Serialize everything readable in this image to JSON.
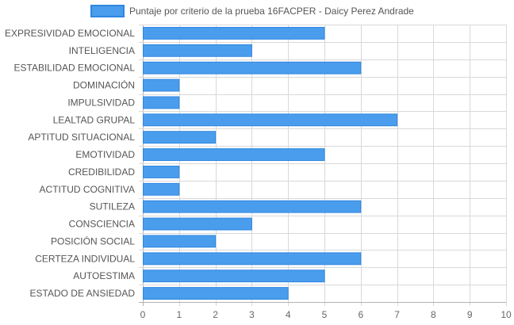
{
  "chart_data": {
    "type": "bar",
    "orientation": "horizontal",
    "categories": [
      "EXPRESIVIDAD EMOCIONAL",
      "INTELIGENCIA",
      "ESTABILIDAD EMOCIONAL",
      "DOMINACIÓN",
      "IMPULSIVIDAD",
      "LEALTAD GRUPAL",
      "APTITUD SITUACIONAL",
      "EMOTIVIDAD",
      "CREDIBILIDAD",
      "ACTITUD COGNITIVA",
      "SUTILEZA",
      "CONSCIENCIA",
      "POSICIÓN SOCIAL",
      "CERTEZA INDIVIDUAL",
      "AUTOESTIMA",
      "ESTADO DE ANSIEDAD"
    ],
    "series": [
      {
        "name": "Puntaje por criterio de la prueba 16FACPER - Daicy Perez Andrade",
        "values": [
          5,
          3,
          6,
          1,
          1,
          7,
          2,
          5,
          1,
          1,
          6,
          3,
          2,
          6,
          5,
          4
        ],
        "color": "#4a9ded",
        "border_color": "#2f86e0"
      }
    ],
    "xlim": [
      0,
      10
    ],
    "x_ticks": [
      "0",
      "1",
      "2",
      "3",
      "4",
      "5",
      "6",
      "7",
      "8",
      "9",
      "10"
    ],
    "grid": true,
    "legend_position": "top",
    "grid_color": "#d9d9d9",
    "axis_color": "#b3b3b3"
  }
}
